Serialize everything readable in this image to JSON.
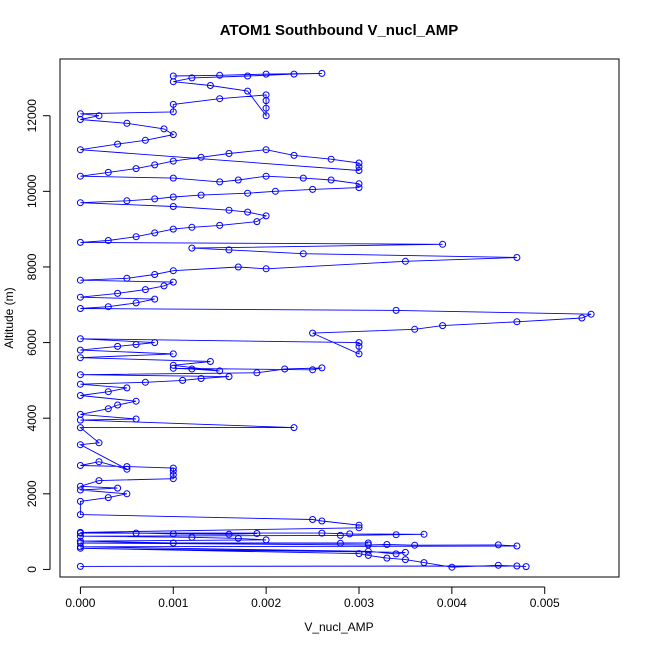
{
  "chart_data": {
    "type": "scatter",
    "title": "ATOM1 Southbound V_nucl_AMP",
    "xlabel": "V_nucl_AMP",
    "ylabel": "Altitude (m)",
    "xlim": [
      -0.00022,
      0.0058
    ],
    "ylim": [
      -200,
      13500
    ],
    "x_ticks": [
      "0.000",
      "0.001",
      "0.002",
      "0.003",
      "0.004",
      "0.005"
    ],
    "x_tick_values": [
      0,
      0.001,
      0.002,
      0.003,
      0.004,
      0.005
    ],
    "y_ticks": [
      "0",
      "2000",
      "4000",
      "6000",
      "8000",
      "10000",
      "12000"
    ],
    "y_tick_values": [
      0,
      2000,
      4000,
      6000,
      8000,
      10000,
      12000
    ],
    "grid": false,
    "legend": "none",
    "series_color": "#0000ff",
    "markers": "open-circle",
    "connected": true,
    "points": [
      [
        0,
        80
      ],
      [
        0.0047,
        90
      ],
      [
        0.0048,
        75
      ],
      [
        0.0045,
        110
      ],
      [
        0.004,
        60
      ],
      [
        0.0037,
        180
      ],
      [
        0.0035,
        260
      ],
      [
        0.0033,
        300
      ],
      [
        0.0031,
        370
      ],
      [
        0.003,
        420
      ],
      [
        0,
        560
      ],
      [
        0.0035,
        450
      ],
      [
        0.0034,
        410
      ],
      [
        0.0031,
        480
      ],
      [
        0,
        600
      ],
      [
        0.0047,
        620
      ],
      [
        0.0045,
        650
      ],
      [
        0.0036,
        640
      ],
      [
        0.0033,
        660
      ],
      [
        0.0031,
        650
      ],
      [
        0,
        700
      ],
      [
        0.0031,
        700
      ],
      [
        0.0028,
        690
      ],
      [
        0.001,
        700
      ],
      [
        0,
        750
      ],
      [
        0.002,
        780
      ],
      [
        0.0017,
        820
      ],
      [
        0.0012,
        850
      ],
      [
        0,
        880
      ],
      [
        0.0028,
        900
      ],
      [
        0.0034,
        920
      ],
      [
        0.0037,
        930
      ],
      [
        0.0029,
        940
      ],
      [
        0.0026,
        960
      ],
      [
        0,
        960
      ],
      [
        0.0019,
        950
      ],
      [
        0.0016,
        930
      ],
      [
        0.001,
        940
      ],
      [
        0.0006,
        960
      ],
      [
        0,
        980
      ],
      [
        0.003,
        1100
      ],
      [
        0.003,
        1170
      ],
      [
        0.0026,
        1280
      ],
      [
        0.0025,
        1320
      ],
      [
        0,
        1450
      ],
      [
        0,
        1800
      ],
      [
        0.0003,
        1900
      ],
      [
        0.0005,
        2000
      ],
      [
        0,
        2100
      ],
      [
        0.0004,
        2150
      ],
      [
        0,
        2200
      ],
      [
        0.0002,
        2350
      ],
      [
        0.001,
        2400
      ],
      [
        0.001,
        2500
      ],
      [
        0.001,
        2600
      ],
      [
        0.001,
        2680
      ],
      [
        0.0005,
        2720
      ],
      [
        0,
        2750
      ],
      [
        0.0002,
        2850
      ],
      [
        0.0005,
        2650
      ],
      [
        0,
        3300
      ],
      [
        0.0002,
        3350
      ],
      [
        0,
        3750
      ],
      [
        0.0023,
        3750
      ],
      [
        0,
        3950
      ],
      [
        0.0006,
        3980
      ],
      [
        0,
        4100
      ],
      [
        0.0003,
        4250
      ],
      [
        0.0004,
        4350
      ],
      [
        0.0006,
        4450
      ],
      [
        0,
        4600
      ],
      [
        0.0003,
        4700
      ],
      [
        0.0005,
        4800
      ],
      [
        0,
        4900
      ],
      [
        0.0007,
        4950
      ],
      [
        0.0011,
        5000
      ],
      [
        0.0013,
        5050
      ],
      [
        0.0016,
        5100
      ],
      [
        0,
        5150
      ],
      [
        0.0019,
        5200
      ],
      [
        0.0022,
        5300
      ],
      [
        0.0026,
        5330
      ],
      [
        0.0025,
        5280
      ],
      [
        0.001,
        5320
      ],
      [
        0.0012,
        5300
      ],
      [
        0.0015,
        5250
      ],
      [
        0.001,
        5400
      ],
      [
        0.0014,
        5500
      ],
      [
        0,
        5600
      ],
      [
        0.001,
        5700
      ],
      [
        0,
        5800
      ],
      [
        0.0004,
        5900
      ],
      [
        0.0006,
        5950
      ],
      [
        0.0008,
        6000
      ],
      [
        0,
        6100
      ],
      [
        0.003,
        6000
      ],
      [
        0.003,
        5900
      ],
      [
        0.003,
        5700
      ],
      [
        0.0025,
        6250
      ],
      [
        0.0036,
        6350
      ],
      [
        0.0039,
        6450
      ],
      [
        0.0047,
        6550
      ],
      [
        0.0054,
        6650
      ],
      [
        0.0055,
        6750
      ],
      [
        0.0034,
        6850
      ],
      [
        0,
        6900
      ],
      [
        0.0003,
        6950
      ],
      [
        0.0006,
        7050
      ],
      [
        0.0008,
        7150
      ],
      [
        0,
        7200
      ],
      [
        0.0004,
        7300
      ],
      [
        0.0007,
        7400
      ],
      [
        0.0009,
        7500
      ],
      [
        0.001,
        7600
      ],
      [
        0,
        7650
      ],
      [
        0.0005,
        7700
      ],
      [
        0.0008,
        7800
      ],
      [
        0.001,
        7900
      ],
      [
        0.0017,
        8000
      ],
      [
        0.002,
        7950
      ],
      [
        0.0035,
        8150
      ],
      [
        0.0047,
        8250
      ],
      [
        0.0024,
        8350
      ],
      [
        0.0016,
        8450
      ],
      [
        0.0012,
        8500
      ],
      [
        0.0039,
        8600
      ],
      [
        0,
        8650
      ],
      [
        0.0003,
        8700
      ],
      [
        0.0006,
        8800
      ],
      [
        0.0008,
        8900
      ],
      [
        0.001,
        9000
      ],
      [
        0.0012,
        9050
      ],
      [
        0.0015,
        9100
      ],
      [
        0.0019,
        9200
      ],
      [
        0.002,
        9350
      ],
      [
        0.0018,
        9450
      ],
      [
        0.0016,
        9500
      ],
      [
        0.001,
        9600
      ],
      [
        0,
        9700
      ],
      [
        0.0005,
        9750
      ],
      [
        0.0008,
        9800
      ],
      [
        0.001,
        9850
      ],
      [
        0.0013,
        9900
      ],
      [
        0.0018,
        9950
      ],
      [
        0.0021,
        10000
      ],
      [
        0.0025,
        10050
      ],
      [
        0.003,
        10100
      ],
      [
        0.003,
        10200
      ],
      [
        0.0027,
        10300
      ],
      [
        0.0024,
        10350
      ],
      [
        0.002,
        10400
      ],
      [
        0.0017,
        10300
      ],
      [
        0.0015,
        10250
      ],
      [
        0.001,
        10350
      ],
      [
        0,
        10400
      ],
      [
        0.0003,
        10500
      ],
      [
        0.0006,
        10600
      ],
      [
        0.0008,
        10700
      ],
      [
        0.001,
        10800
      ],
      [
        0.0013,
        10900
      ],
      [
        0.0016,
        11000
      ],
      [
        0.002,
        11100
      ],
      [
        0.0023,
        10950
      ],
      [
        0.0027,
        10850
      ],
      [
        0.003,
        10750
      ],
      [
        0.003,
        10650
      ],
      [
        0.003,
        10550
      ],
      [
        0,
        11100
      ],
      [
        0.0004,
        11250
      ],
      [
        0.0007,
        11350
      ],
      [
        0.001,
        11500
      ],
      [
        0.0009,
        11650
      ],
      [
        0.0005,
        11800
      ],
      [
        0,
        11900
      ],
      [
        0.0002,
        12000
      ],
      [
        0,
        12050
      ],
      [
        0.001,
        12100
      ],
      [
        0.001,
        12300
      ],
      [
        0.0015,
        12450
      ],
      [
        0.002,
        12550
      ],
      [
        0.002,
        12400
      ],
      [
        0.002,
        12200
      ],
      [
        0.002,
        12000
      ],
      [
        0.0018,
        12650
      ],
      [
        0.0014,
        12800
      ],
      [
        0.001,
        12900
      ],
      [
        0.0012,
        13000
      ],
      [
        0.0018,
        13050
      ],
      [
        0.0023,
        13100
      ],
      [
        0.0026,
        13120
      ],
      [
        0.002,
        13100
      ],
      [
        0.0015,
        13070
      ],
      [
        0.001,
        13050
      ]
    ]
  }
}
